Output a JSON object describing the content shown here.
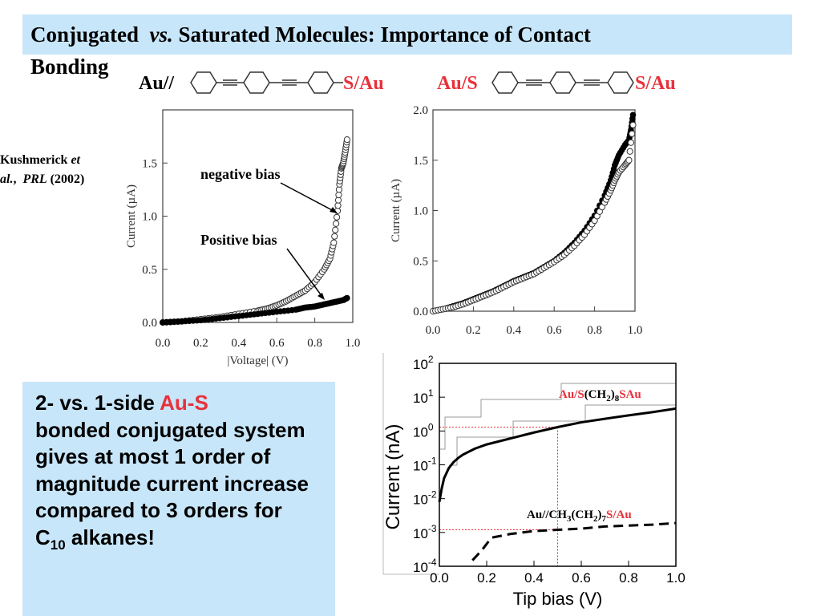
{
  "header": {
    "title_part1": "Conjugated",
    "title_vs": "vs.",
    "title_part2": "Saturated Molecules: Importance of Contact",
    "title_line2": "Bonding"
  },
  "molecules": {
    "left_prefix": "Au//",
    "left_suffix": "S/Au",
    "right_prefix": "Au/S",
    "right_suffix": "S/Au"
  },
  "citation": {
    "author": "Kushmerick",
    "et": "et",
    "al": "al.",
    "journal": "PRL",
    "year": "(2002)"
  },
  "info": {
    "line1_a": "2- vs. 1-side ",
    "line1_b": "Au-S",
    "rest": "bonded conjugated system gives at most 1 order of magnitude current increase compared to 3 orders for",
    "c": "C",
    "sub": "10",
    "tail": " alkanes!"
  },
  "colors": {
    "accent_red": "#e8313a",
    "box_blue": "#c8e6fa"
  },
  "chart_data": [
    {
      "type": "scatter",
      "xlabel": "|Voltage| (V)",
      "ylabel": "Current (µA)",
      "xlim": [
        0,
        1.0
      ],
      "ylim": [
        0,
        2.0
      ],
      "xticks": [
        "0.0",
        "0.2",
        "0.4",
        "0.6",
        "0.8",
        "1.0"
      ],
      "yticks": [
        "0.0",
        "0.5",
        "1.0",
        "1.5"
      ],
      "annotations": [
        "negative bias",
        "Positive bias"
      ],
      "series": [
        {
          "name": "negative bias",
          "marker": "open",
          "x": [
            0.0,
            0.1,
            0.2,
            0.3,
            0.4,
            0.5,
            0.55,
            0.6,
            0.65,
            0.7,
            0.75,
            0.8,
            0.85,
            0.88,
            0.9,
            0.92,
            0.93,
            0.94,
            0.95,
            0.96,
            0.97
          ],
          "y": [
            0.0,
            0.01,
            0.03,
            0.05,
            0.08,
            0.11,
            0.13,
            0.16,
            0.2,
            0.25,
            0.3,
            0.38,
            0.5,
            0.6,
            0.75,
            1.05,
            1.3,
            1.45,
            1.5,
            1.6,
            1.72
          ]
        },
        {
          "name": "Positive bias",
          "marker": "filled",
          "x": [
            0.0,
            0.1,
            0.2,
            0.3,
            0.4,
            0.5,
            0.6,
            0.7,
            0.75,
            0.8,
            0.85,
            0.9,
            0.95,
            0.97
          ],
          "y": [
            0.0,
            0.01,
            0.02,
            0.04,
            0.06,
            0.08,
            0.1,
            0.12,
            0.14,
            0.15,
            0.17,
            0.19,
            0.21,
            0.23
          ]
        }
      ]
    },
    {
      "type": "scatter",
      "xlabel": "",
      "ylabel": "Current (µA)",
      "xlim": [
        0,
        1.0
      ],
      "ylim": [
        0,
        2.0
      ],
      "xticks": [
        "0.0",
        "0.2",
        "0.4",
        "0.6",
        "0.8",
        "1.0"
      ],
      "yticks": [
        "0.0",
        "0.5",
        "1.0",
        "1.5",
        "2.0"
      ],
      "series": [
        {
          "marker": "filled",
          "x": [
            0.0,
            0.05,
            0.1,
            0.15,
            0.2,
            0.25,
            0.3,
            0.35,
            0.4,
            0.45,
            0.5,
            0.55,
            0.6,
            0.65,
            0.7,
            0.75,
            0.8,
            0.85,
            0.88,
            0.9,
            0.92,
            0.95,
            0.97,
            0.98,
            0.99
          ],
          "y": [
            0.0,
            0.02,
            0.05,
            0.08,
            0.12,
            0.16,
            0.2,
            0.25,
            0.3,
            0.34,
            0.38,
            0.44,
            0.5,
            0.58,
            0.68,
            0.8,
            0.95,
            1.15,
            1.3,
            1.45,
            1.55,
            1.65,
            1.7,
            1.8,
            1.95
          ]
        },
        {
          "marker": "open",
          "x": [
            0.0,
            0.05,
            0.1,
            0.15,
            0.2,
            0.25,
            0.3,
            0.35,
            0.4,
            0.45,
            0.5,
            0.55,
            0.6,
            0.65,
            0.7,
            0.75,
            0.8,
            0.85,
            0.88,
            0.9,
            0.92,
            0.95,
            0.97,
            0.99
          ],
          "y": [
            0.0,
            0.02,
            0.04,
            0.07,
            0.11,
            0.15,
            0.19,
            0.24,
            0.29,
            0.33,
            0.37,
            0.43,
            0.49,
            0.56,
            0.65,
            0.76,
            0.9,
            1.08,
            1.2,
            1.3,
            1.38,
            1.45,
            1.5,
            1.85
          ]
        }
      ]
    },
    {
      "type": "line",
      "xlabel": "Tip bias (V)",
      "ylabel": "Current (nA)",
      "yscale": "log",
      "xlim": [
        0,
        1.0
      ],
      "ylim": [
        0.0001,
        100
      ],
      "xticks": [
        "0.0",
        "0.2",
        "0.4",
        "0.6",
        "0.8",
        "1.0"
      ],
      "ytick_exps": [
        "2",
        "1",
        "0",
        "-1",
        "-2",
        "-3",
        "-4"
      ],
      "ytick_base": "10",
      "series": [
        {
          "label_a": "Au/S",
          "label_b": "(CH",
          "label_sub1": "2",
          "label_c": ")",
          "label_sub2": "8",
          "label_d": "SAu",
          "style": "solid",
          "x": [
            0.0,
            0.01,
            0.02,
            0.04,
            0.06,
            0.08,
            0.1,
            0.15,
            0.2,
            0.3,
            0.4,
            0.5,
            0.6,
            0.7,
            0.8,
            0.9,
            1.0
          ],
          "y": [
            0.008,
            0.02,
            0.04,
            0.08,
            0.12,
            0.16,
            0.2,
            0.3,
            0.4,
            0.6,
            0.9,
            1.3,
            1.8,
            2.3,
            2.9,
            3.6,
            4.6
          ]
        },
        {
          "label_a": "Au//CH",
          "label_sub1": "3",
          "label_b": "(CH",
          "label_sub2": "2",
          "label_c": ")",
          "label_sub3": "7",
          "label_d": "S/Au",
          "style": "dashed",
          "x": [
            0.14,
            0.18,
            0.22,
            0.3,
            0.4,
            0.5,
            0.6,
            0.7,
            0.8,
            0.9,
            1.0
          ],
          "y": [
            0.00015,
            0.0003,
            0.0007,
            0.0009,
            0.0011,
            0.0012,
            0.0013,
            0.0015,
            0.0016,
            0.0017,
            0.0019
          ]
        }
      ]
    }
  ]
}
